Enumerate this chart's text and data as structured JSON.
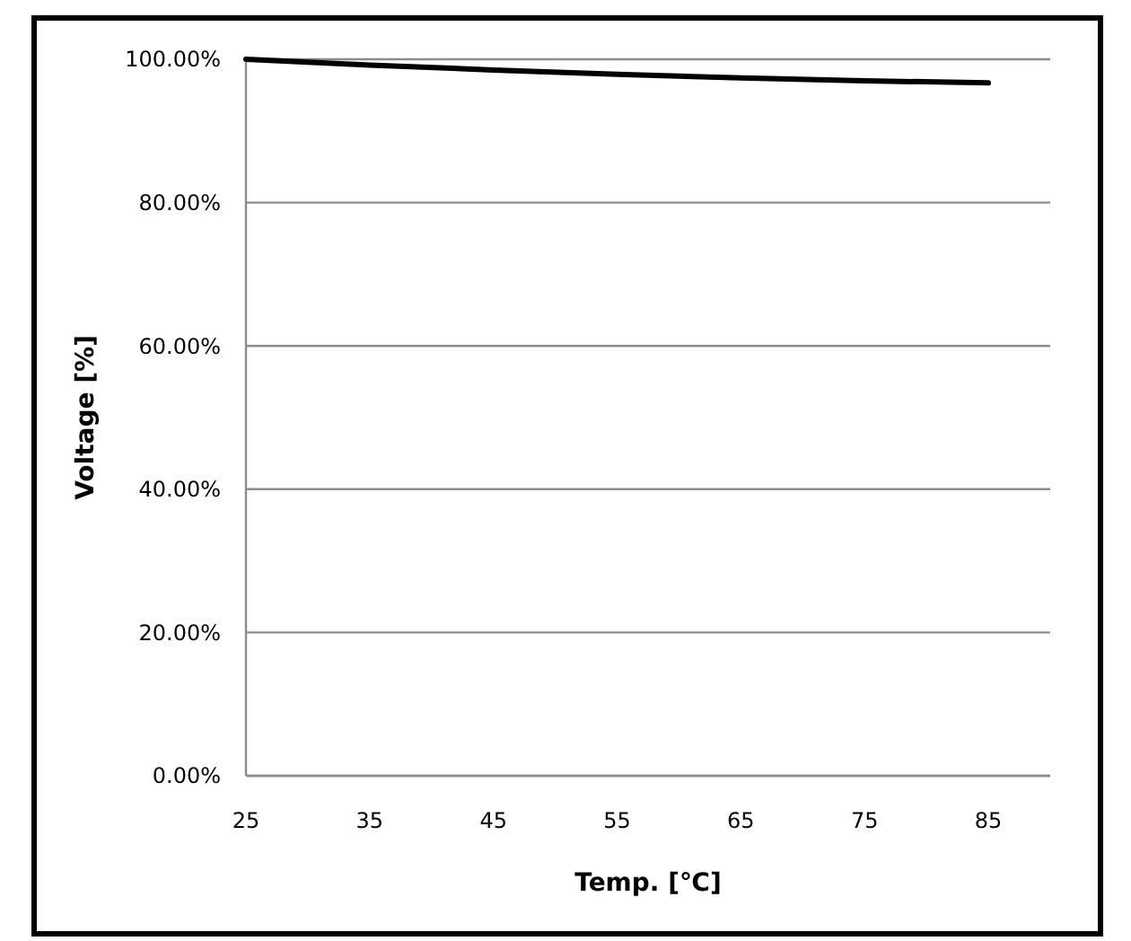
{
  "chart_data": {
    "type": "line",
    "xlabel": "Temp. [℃]",
    "ylabel": "Voltage [%]",
    "x": [
      25,
      35,
      45,
      55,
      65,
      75,
      85
    ],
    "series": [
      {
        "color": "#000000",
        "values": [
          100,
          99.2,
          98.5,
          97.9,
          97.4,
          97.0,
          96.7
        ]
      }
    ],
    "xlim": [
      25,
      90
    ],
    "xticks": [
      25,
      35,
      45,
      55,
      65,
      75,
      85
    ],
    "ylim": [
      0,
      100
    ],
    "yticks": [
      {
        "value": 0,
        "label": "0.00%"
      },
      {
        "value": 20,
        "label": "20.00%"
      },
      {
        "value": 40,
        "label": "40.00%"
      },
      {
        "value": 60,
        "label": "60.00%"
      },
      {
        "value": 80,
        "label": "80.00%"
      },
      {
        "value": 100,
        "label": "100.00%"
      }
    ],
    "grid": "y",
    "marker": "none",
    "line_style": "solid"
  }
}
